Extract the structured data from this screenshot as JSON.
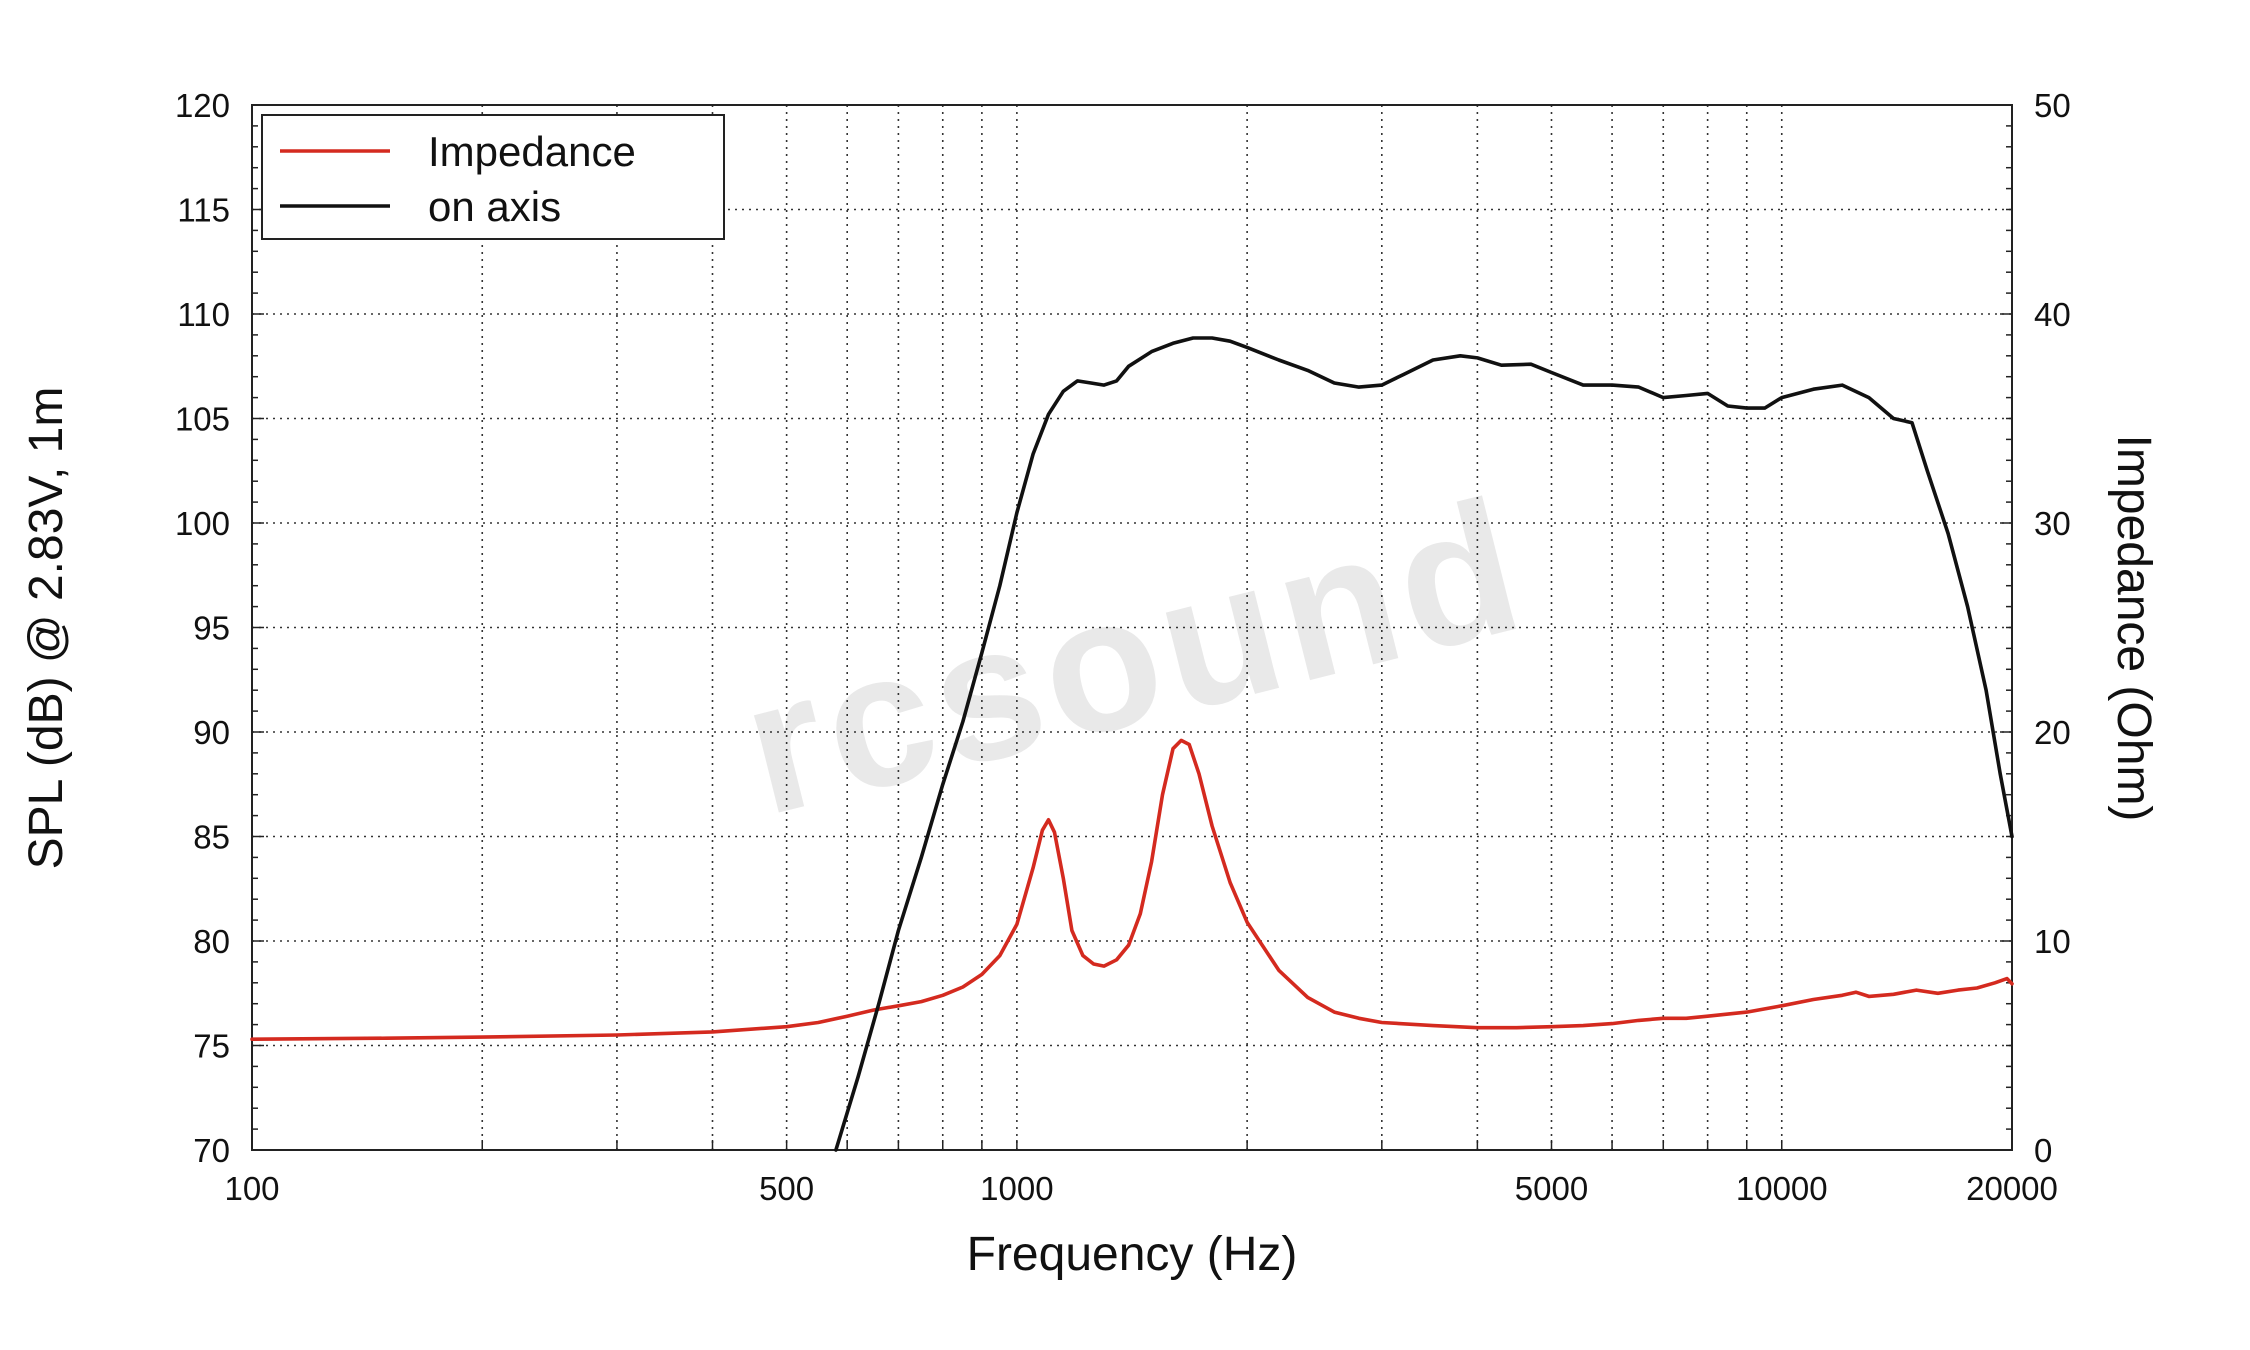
{
  "chart_data": {
    "type": "line",
    "xlabel": "Frequency (Hz)",
    "ylabel": "SPL (dB) @ 2.83V, 1m",
    "y2label": "Impedance (Ohm)",
    "x_scale": "log",
    "xlim": [
      100,
      20000
    ],
    "ylim": [
      70,
      120
    ],
    "y2lim": [
      0,
      50
    ],
    "x_ticks": [
      100,
      500,
      1000,
      5000,
      10000,
      20000
    ],
    "y_ticks": [
      70,
      75,
      80,
      85,
      90,
      95,
      100,
      105,
      110,
      115,
      120
    ],
    "y2_ticks": [
      0,
      10,
      20,
      30,
      40,
      50
    ],
    "grid": true,
    "legend_position": "top-left",
    "watermark": "rcsound",
    "series": [
      {
        "name": "Impedance",
        "axis": "right",
        "color": "#d42a1f",
        "points": [
          [
            100,
            5.3
          ],
          [
            150,
            5.35
          ],
          [
            200,
            5.4
          ],
          [
            300,
            5.5
          ],
          [
            400,
            5.65
          ],
          [
            500,
            5.9
          ],
          [
            550,
            6.1
          ],
          [
            600,
            6.4
          ],
          [
            650,
            6.7
          ],
          [
            700,
            6.9
          ],
          [
            750,
            7.1
          ],
          [
            800,
            7.4
          ],
          [
            850,
            7.8
          ],
          [
            900,
            8.4
          ],
          [
            950,
            9.3
          ],
          [
            1000,
            10.8
          ],
          [
            1050,
            13.5
          ],
          [
            1080,
            15.3
          ],
          [
            1100,
            15.8
          ],
          [
            1120,
            15.2
          ],
          [
            1150,
            13.0
          ],
          [
            1180,
            10.5
          ],
          [
            1220,
            9.3
          ],
          [
            1260,
            8.9
          ],
          [
            1300,
            8.8
          ],
          [
            1350,
            9.1
          ],
          [
            1400,
            9.8
          ],
          [
            1450,
            11.3
          ],
          [
            1500,
            13.8
          ],
          [
            1550,
            17.0
          ],
          [
            1600,
            19.2
          ],
          [
            1640,
            19.6
          ],
          [
            1680,
            19.4
          ],
          [
            1730,
            18.0
          ],
          [
            1800,
            15.5
          ],
          [
            1900,
            12.8
          ],
          [
            2000,
            10.9
          ],
          [
            2200,
            8.6
          ],
          [
            2400,
            7.3
          ],
          [
            2600,
            6.6
          ],
          [
            2800,
            6.3
          ],
          [
            3000,
            6.1
          ],
          [
            3500,
            5.95
          ],
          [
            4000,
            5.85
          ],
          [
            4500,
            5.85
          ],
          [
            5000,
            5.9
          ],
          [
            5500,
            5.95
          ],
          [
            6000,
            6.05
          ],
          [
            6500,
            6.2
          ],
          [
            7000,
            6.3
          ],
          [
            7500,
            6.3
          ],
          [
            8000,
            6.4
          ],
          [
            9000,
            6.6
          ],
          [
            10000,
            6.9
          ],
          [
            11000,
            7.2
          ],
          [
            12000,
            7.4
          ],
          [
            12500,
            7.55
          ],
          [
            13000,
            7.35
          ],
          [
            14000,
            7.45
          ],
          [
            15000,
            7.65
          ],
          [
            16000,
            7.5
          ],
          [
            17000,
            7.65
          ],
          [
            18000,
            7.75
          ],
          [
            19000,
            8.0
          ],
          [
            19700,
            8.2
          ],
          [
            20000,
            7.95
          ]
        ]
      },
      {
        "name": "on axis",
        "axis": "left",
        "color": "#111111",
        "points": [
          [
            580,
            70.0
          ],
          [
            620,
            73.5
          ],
          [
            660,
            77.0
          ],
          [
            700,
            80.5
          ],
          [
            750,
            84.0
          ],
          [
            800,
            87.5
          ],
          [
            850,
            90.5
          ],
          [
            900,
            93.8
          ],
          [
            950,
            97.0
          ],
          [
            1000,
            100.5
          ],
          [
            1050,
            103.3
          ],
          [
            1100,
            105.2
          ],
          [
            1150,
            106.3
          ],
          [
            1200,
            106.8
          ],
          [
            1250,
            106.7
          ],
          [
            1300,
            106.6
          ],
          [
            1350,
            106.8
          ],
          [
            1400,
            107.5
          ],
          [
            1500,
            108.2
          ],
          [
            1600,
            108.6
          ],
          [
            1700,
            108.85
          ],
          [
            1800,
            108.85
          ],
          [
            1900,
            108.7
          ],
          [
            2000,
            108.4
          ],
          [
            2200,
            107.8
          ],
          [
            2400,
            107.3
          ],
          [
            2600,
            106.7
          ],
          [
            2800,
            106.5
          ],
          [
            3000,
            106.6
          ],
          [
            3200,
            107.1
          ],
          [
            3500,
            107.8
          ],
          [
            3800,
            108.0
          ],
          [
            4000,
            107.9
          ],
          [
            4300,
            107.55
          ],
          [
            4700,
            107.6
          ],
          [
            5000,
            107.2
          ],
          [
            5500,
            106.6
          ],
          [
            6000,
            106.6
          ],
          [
            6500,
            106.5
          ],
          [
            7000,
            106.0
          ],
          [
            7500,
            106.1
          ],
          [
            8000,
            106.2
          ],
          [
            8500,
            105.6
          ],
          [
            9000,
            105.5
          ],
          [
            9500,
            105.5
          ],
          [
            10000,
            106.0
          ],
          [
            11000,
            106.4
          ],
          [
            12000,
            106.6
          ],
          [
            13000,
            106.0
          ],
          [
            14000,
            105.0
          ],
          [
            14800,
            104.8
          ],
          [
            15500,
            102.5
          ],
          [
            16500,
            99.5
          ],
          [
            17500,
            96.0
          ],
          [
            18500,
            92.0
          ],
          [
            19300,
            88.0
          ],
          [
            20000,
            85.0
          ]
        ]
      }
    ]
  }
}
